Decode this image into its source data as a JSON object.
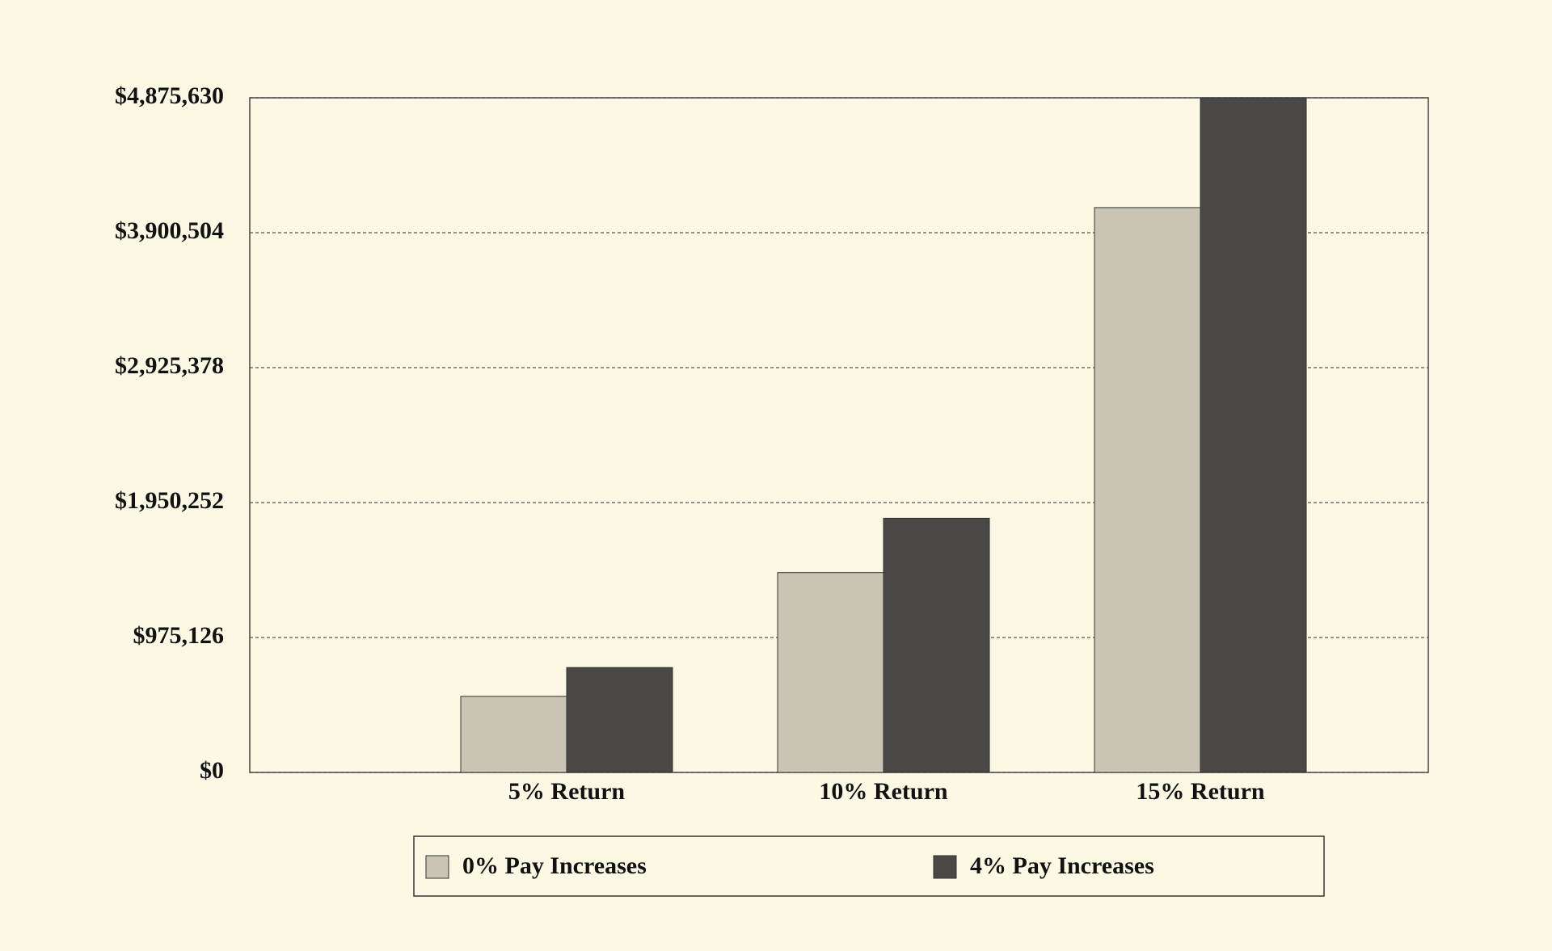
{
  "chart_data": {
    "type": "bar",
    "categories": [
      "5% Return",
      "10% Return",
      "15% Return"
    ],
    "series": [
      {
        "name": "0% Pay Increases",
        "color": "#c9c4b4",
        "values": [
          550000,
          1444000,
          4082000
        ]
      },
      {
        "name": "4% Pay Increases",
        "color": "#4a4847",
        "values": [
          758000,
          1837000,
          4875630
        ]
      }
    ],
    "ylim": [
      0,
      4875630
    ],
    "yticks": [
      {
        "value": 0,
        "label": "$0"
      },
      {
        "value": 975126,
        "label": "$975,126"
      },
      {
        "value": 1950252,
        "label": "$1,950,252"
      },
      {
        "value": 2925378,
        "label": "$2,925,378"
      },
      {
        "value": 3900504,
        "label": "$3,900,504"
      },
      {
        "value": 4875630,
        "label": "$4,875,630"
      }
    ],
    "grid": true
  }
}
